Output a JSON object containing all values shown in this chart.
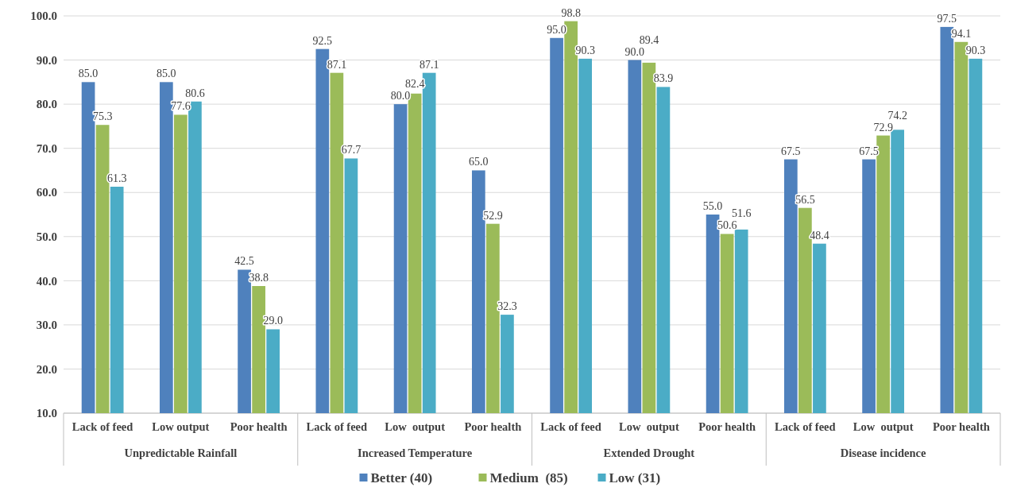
{
  "chart_data": {
    "type": "bar",
    "categories": [
      "Lack of feed",
      "Low output",
      "Poor health",
      "Lack of feed",
      "Low  output",
      "Poor health",
      "Lack of feed",
      "Low  output",
      "Poor health",
      "Lack of feed",
      "Low  output",
      "Poor health"
    ],
    "annotations": [
      "Unpredictable Rainfall",
      "Increased Temperature",
      "Extended Drought",
      "Disease incidence"
    ],
    "series": [
      {
        "name": "Better (40)",
        "color": "#4f81bd",
        "values": [
          85.0,
          85.0,
          42.5,
          92.5,
          80.0,
          65.0,
          95.0,
          90.0,
          55.0,
          67.5,
          67.5,
          97.5
        ],
        "value_labels": [
          "85.0",
          "85.0",
          "42.5",
          "92.5",
          "80.0",
          "65.0",
          "95.0",
          "90.0",
          "55.0",
          "67.5",
          "67.5",
          "97.5"
        ]
      },
      {
        "name": "Medium  (85)",
        "color": "#9bbb59",
        "values": [
          75.3,
          77.6,
          38.8,
          87.1,
          82.4,
          52.9,
          98.8,
          89.4,
          50.6,
          56.5,
          72.9,
          94.1
        ],
        "value_labels": [
          "75.3",
          "77.6",
          "38.8",
          "87.1",
          "82.4",
          "52.9",
          "98.8",
          "89.4",
          "50.6",
          "56.5",
          "72.9",
          "94.1"
        ]
      },
      {
        "name": "Low (31)",
        "color": "#4bacc6",
        "values": [
          61.3,
          80.6,
          29.0,
          67.7,
          87.1,
          32.3,
          90.3,
          83.9,
          51.6,
          48.4,
          74.2,
          90.3
        ],
        "value_labels": [
          "61.3",
          "80.6",
          "29.0",
          "67.7",
          "87.1",
          "32.3",
          "90.3",
          "83.9",
          "51.6",
          "48.4",
          "74.2",
          "90.3"
        ]
      }
    ],
    "ylim": [
      10,
      100
    ],
    "yticks": [
      {
        "value": 10,
        "label": "10.0"
      },
      {
        "value": 20,
        "label": "20.0"
      },
      {
        "value": 30,
        "label": "30.0"
      },
      {
        "value": 40,
        "label": "40.0"
      },
      {
        "value": 50,
        "label": "50.0"
      },
      {
        "value": 60,
        "label": "60.0"
      },
      {
        "value": 70,
        "label": "70.0"
      },
      {
        "value": 80,
        "label": "80.0"
      },
      {
        "value": 90,
        "label": "90.0"
      },
      {
        "value": 100,
        "label": "100.0"
      }
    ],
    "grid": "y",
    "legend": "bottom"
  }
}
